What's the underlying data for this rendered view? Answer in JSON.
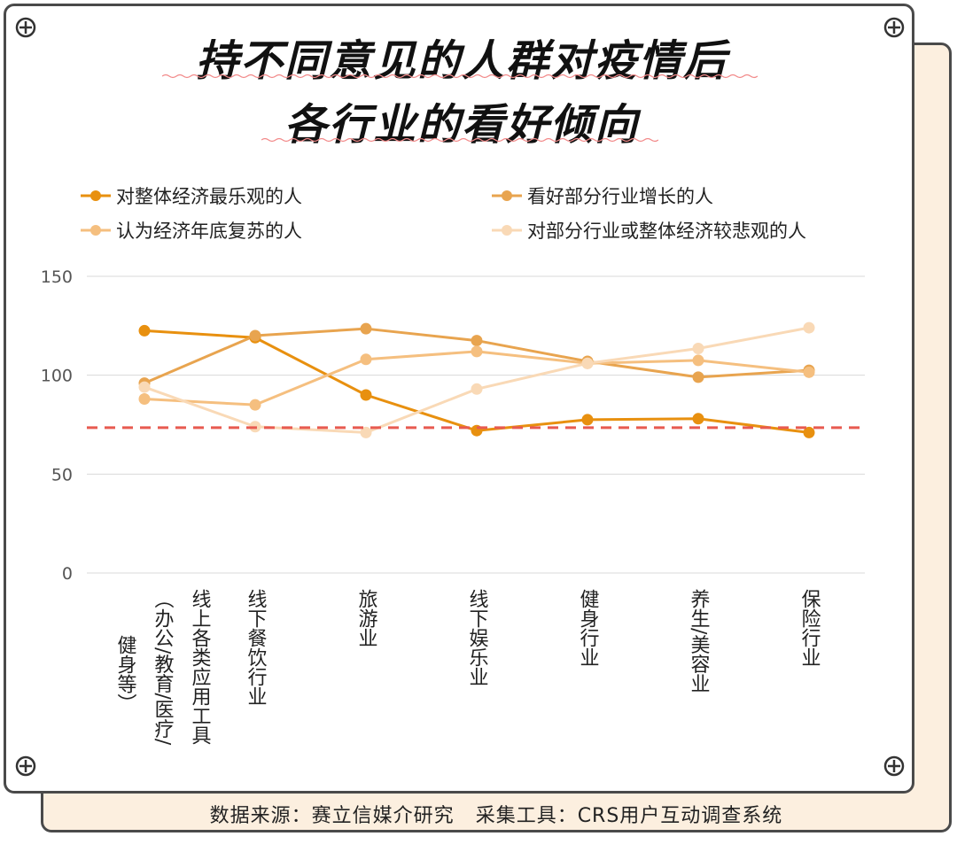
{
  "title_lines": [
    "持不同意见的人群对疫情后",
    "各行业的看好倾向"
  ],
  "footer": {
    "source": "数据来源：赛立信媒介研究",
    "tool": "采集工具：CRS用户互动调查系统"
  },
  "colors": {
    "series1": "#e8900f",
    "series2": "#e8a44f",
    "series3": "#f5bf7f",
    "series4": "#f9d9b6",
    "reference": "#e85a50",
    "grid": "#d9d9d9"
  },
  "chart_data": {
    "type": "line",
    "title": "持不同意见的人群对疫情后各行业的看好倾向",
    "categories": [
      "线上各类应用工具（办公/教育/医疗/健身等）",
      "线下餐饮行业",
      "旅游业",
      "线下娱乐业",
      "健身行业",
      "养生/美容业",
      "保险行业"
    ],
    "category_label_columns": [
      [
        "线上各类应用工具",
        "（办公/教育/医疗/",
        "健身等）"
      ],
      [
        "线下餐饮行业"
      ],
      [
        "旅游业"
      ],
      [
        "线下娱乐业"
      ],
      [
        "健身行业"
      ],
      [
        "养生/美容业"
      ],
      [
        "保险行业"
      ]
    ],
    "series": [
      {
        "name": "对整体经济最乐观的人",
        "values": [
          122.5,
          119,
          90,
          72,
          77.5,
          78,
          71
        ]
      },
      {
        "name": "看好部分行业增长的人",
        "values": [
          96,
          120,
          123.5,
          117.5,
          107,
          99,
          102.5
        ]
      },
      {
        "name": "认为经济年底复苏的人",
        "values": [
          88,
          85,
          108,
          112,
          106,
          107.5,
          101.5
        ]
      },
      {
        "name": "对部分行业或整体经济较悲观的人",
        "values": [
          94,
          74,
          71,
          93,
          106,
          113.5,
          124
        ]
      }
    ],
    "reference_line": 73.5,
    "yticks": [
      0,
      50,
      100,
      150
    ],
    "ylim": [
      0,
      150
    ],
    "grid": true,
    "legend_position": "top"
  }
}
